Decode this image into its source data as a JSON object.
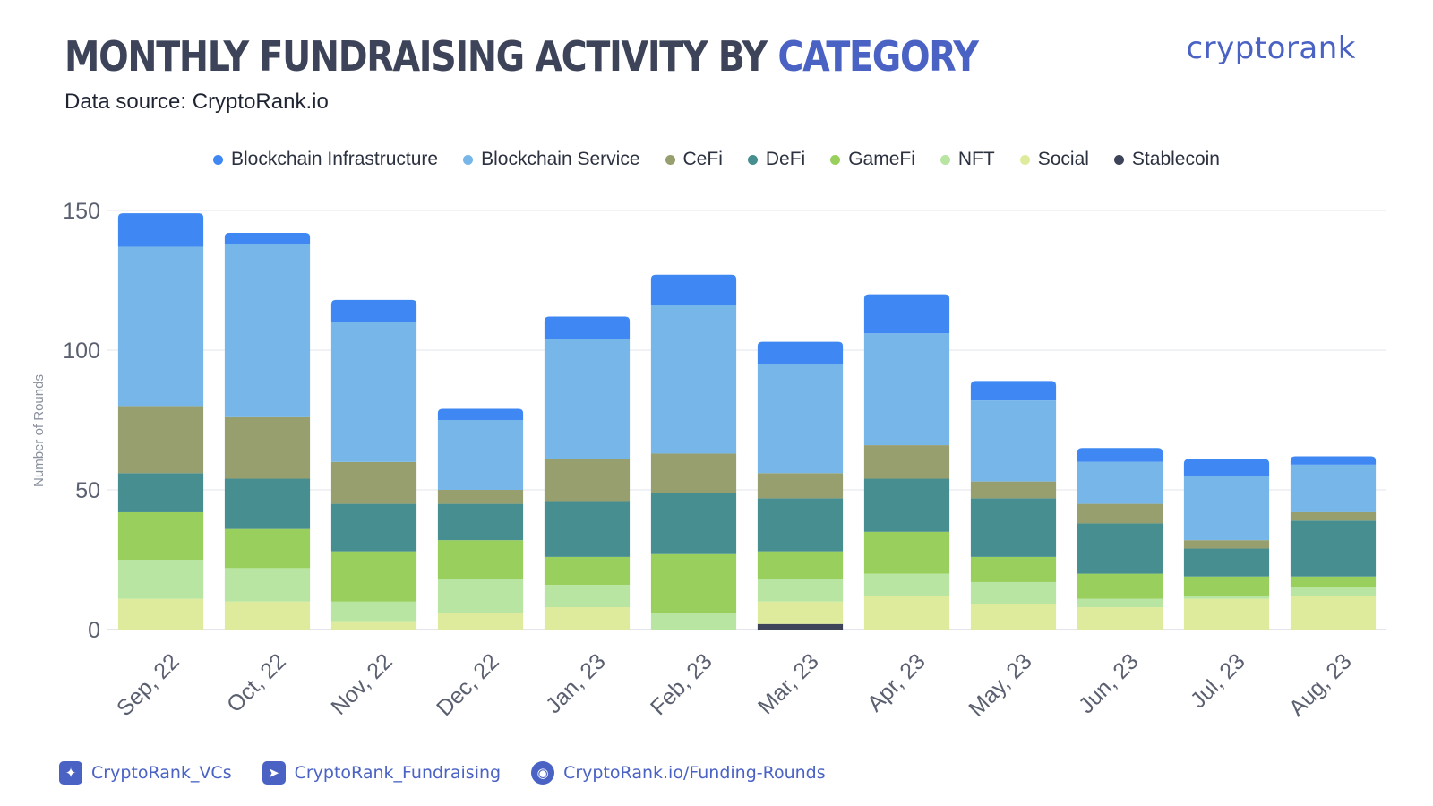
{
  "header": {
    "title_main": "MONTHLY FUNDRAISING ACTIVITY BY ",
    "title_accent": "CATEGORY",
    "subtitle": "Data source: CryptoRank.io",
    "logo_text": "cryptorank"
  },
  "footer": {
    "items": [
      {
        "label": "CryptoRank_VCs",
        "icon": "twitter-icon"
      },
      {
        "label": "CryptoRank_Fundraising",
        "icon": "telegram-icon"
      },
      {
        "label": "CryptoRank.io/Funding-Rounds",
        "icon": "globe-icon"
      }
    ]
  },
  "chart_data": {
    "type": "bar",
    "stacked": true,
    "title": "MONTHLY FUNDRAISING ACTIVITY BY CATEGORY",
    "ylabel": "Number of Rounds",
    "xlabel": "",
    "ylim": [
      0,
      150
    ],
    "yticks": [
      0,
      50,
      100,
      150
    ],
    "grid": true,
    "legend_position": "top",
    "categories": [
      "Sep, 22",
      "Oct, 22",
      "Nov, 22",
      "Dec, 22",
      "Jan, 23",
      "Feb, 23",
      "Mar, 23",
      "Apr, 23",
      "May, 23",
      "Jun, 23",
      "Jul, 23",
      "Aug, 23"
    ],
    "series": [
      {
        "name": "Stablecoin",
        "color": "#3d4459",
        "values": [
          0,
          0,
          0,
          0,
          0,
          0,
          2,
          0,
          0,
          0,
          0,
          0
        ]
      },
      {
        "name": "Social",
        "color": "#dfeb9c",
        "values": [
          11,
          10,
          3,
          6,
          8,
          0,
          8,
          12,
          9,
          8,
          11,
          12
        ]
      },
      {
        "name": "NFT",
        "color": "#b8e6a2",
        "values": [
          14,
          12,
          7,
          12,
          8,
          6,
          8,
          8,
          8,
          3,
          1,
          3
        ]
      },
      {
        "name": "GameFi",
        "color": "#99d05d",
        "values": [
          17,
          14,
          18,
          14,
          10,
          21,
          10,
          15,
          9,
          9,
          7,
          4
        ]
      },
      {
        "name": "DeFi",
        "color": "#468e90",
        "values": [
          14,
          18,
          17,
          13,
          20,
          22,
          19,
          19,
          21,
          18,
          10,
          20
        ]
      },
      {
        "name": "CeFi",
        "color": "#989f6e",
        "values": [
          24,
          22,
          15,
          5,
          15,
          14,
          9,
          12,
          6,
          7,
          3,
          3
        ]
      },
      {
        "name": "Blockchain Service",
        "color": "#76b6e8",
        "values": [
          57,
          62,
          50,
          25,
          43,
          53,
          39,
          40,
          29,
          15,
          23,
          17
        ]
      },
      {
        "name": "Blockchain Infrastructure",
        "color": "#3f88f3",
        "values": [
          12,
          4,
          8,
          4,
          8,
          11,
          8,
          14,
          7,
          5,
          6,
          3
        ]
      }
    ],
    "legend_order": [
      "Blockchain Infrastructure",
      "Blockchain Service",
      "CeFi",
      "DeFi",
      "GameFi",
      "NFT",
      "Social",
      "Stablecoin"
    ]
  }
}
